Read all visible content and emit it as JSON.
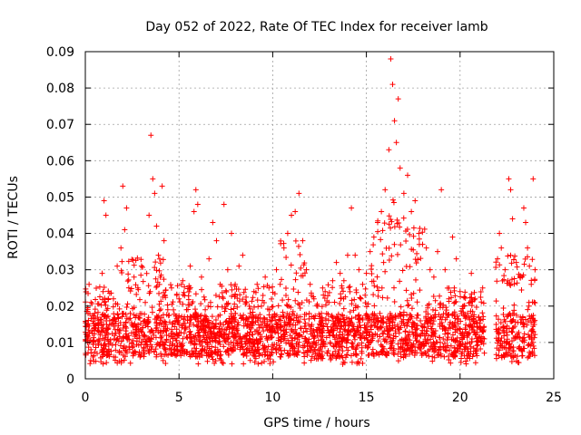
{
  "chart_data": {
    "type": "scatter",
    "title": "Day 052 of 2022, Rate Of TEC Index for receiver lamb",
    "xlabel": "GPS time / hours",
    "ylabel": "ROTI / TECUs",
    "xlim": [
      0,
      25
    ],
    "ylim": [
      0,
      0.09
    ],
    "xticks": [
      "0",
      "5",
      "10",
      "15",
      "20",
      "25"
    ],
    "yticks": [
      "0",
      "0.01",
      "0.02",
      "0.03",
      "0.04",
      "0.05",
      "0.06",
      "0.07",
      "0.08",
      "0.09"
    ],
    "grid": true,
    "marker": "+",
    "series_color": "#ff0000",
    "data_gap_hours": [
      21.3,
      21.9
    ],
    "series": [
      {
        "points": [
          [
            0.1,
            0.012
          ],
          [
            0.2,
            0.026
          ],
          [
            0.3,
            0.008
          ],
          [
            0.5,
            0.018
          ],
          [
            0.7,
            0.014
          ],
          [
            0.9,
            0.029
          ],
          [
            1.0,
            0.049
          ],
          [
            1.1,
            0.045
          ],
          [
            1.3,
            0.016
          ],
          [
            1.5,
            0.022
          ],
          [
            1.7,
            0.031
          ],
          [
            1.9,
            0.036
          ],
          [
            2.0,
            0.053
          ],
          [
            2.1,
            0.041
          ],
          [
            2.2,
            0.047
          ],
          [
            2.4,
            0.018
          ],
          [
            2.6,
            0.028
          ],
          [
            2.8,
            0.025
          ],
          [
            3.0,
            0.031
          ],
          [
            3.2,
            0.021
          ],
          [
            3.4,
            0.045
          ],
          [
            3.5,
            0.067
          ],
          [
            3.6,
            0.055
          ],
          [
            3.7,
            0.051
          ],
          [
            3.8,
            0.042
          ],
          [
            3.9,
            0.034
          ],
          [
            4.0,
            0.028
          ],
          [
            4.1,
            0.053
          ],
          [
            4.2,
            0.038
          ],
          [
            4.4,
            0.019
          ],
          [
            4.6,
            0.025
          ],
          [
            4.8,
            0.016
          ],
          [
            5.0,
            0.022
          ],
          [
            5.2,
            0.027
          ],
          [
            5.4,
            0.019
          ],
          [
            5.6,
            0.031
          ],
          [
            5.8,
            0.046
          ],
          [
            5.9,
            0.052
          ],
          [
            6.0,
            0.048
          ],
          [
            6.2,
            0.028
          ],
          [
            6.4,
            0.019
          ],
          [
            6.6,
            0.033
          ],
          [
            6.8,
            0.043
          ],
          [
            7.0,
            0.038
          ],
          [
            7.2,
            0.026
          ],
          [
            7.4,
            0.048
          ],
          [
            7.6,
            0.03
          ],
          [
            7.8,
            0.04
          ],
          [
            8.0,
            0.023
          ],
          [
            8.2,
            0.031
          ],
          [
            8.4,
            0.034
          ],
          [
            8.6,
            0.021
          ],
          [
            8.8,
            0.018
          ],
          [
            9.0,
            0.024
          ],
          [
            9.2,
            0.016
          ],
          [
            9.4,
            0.02
          ],
          [
            9.6,
            0.028
          ],
          [
            9.8,
            0.025
          ],
          [
            10.0,
            0.017
          ],
          [
            10.2,
            0.03
          ],
          [
            10.4,
            0.026
          ],
          [
            10.6,
            0.036
          ],
          [
            10.8,
            0.04
          ],
          [
            11.0,
            0.045
          ],
          [
            11.2,
            0.046
          ],
          [
            11.4,
            0.051
          ],
          [
            11.6,
            0.038
          ],
          [
            11.8,
            0.03
          ],
          [
            12.0,
            0.026
          ],
          [
            12.2,
            0.022
          ],
          [
            12.4,
            0.02
          ],
          [
            12.6,
            0.018
          ],
          [
            12.8,
            0.024
          ],
          [
            13.0,
            0.021
          ],
          [
            13.2,
            0.027
          ],
          [
            13.4,
            0.032
          ],
          [
            13.6,
            0.029
          ],
          [
            13.8,
            0.027
          ],
          [
            14.0,
            0.034
          ],
          [
            14.2,
            0.047
          ],
          [
            14.4,
            0.034
          ],
          [
            14.6,
            0.03
          ],
          [
            14.8,
            0.026
          ],
          [
            15.0,
            0.029
          ],
          [
            15.2,
            0.035
          ],
          [
            15.4,
            0.039
          ],
          [
            15.6,
            0.043
          ],
          [
            15.8,
            0.046
          ],
          [
            16.0,
            0.052
          ],
          [
            16.2,
            0.063
          ],
          [
            16.3,
            0.088
          ],
          [
            16.4,
            0.081
          ],
          [
            16.5,
            0.071
          ],
          [
            16.6,
            0.065
          ],
          [
            16.7,
            0.077
          ],
          [
            16.8,
            0.058
          ],
          [
            17.0,
            0.051
          ],
          [
            17.2,
            0.056
          ],
          [
            17.4,
            0.046
          ],
          [
            17.6,
            0.049
          ],
          [
            17.8,
            0.04
          ],
          [
            18.0,
            0.037
          ],
          [
            18.2,
            0.036
          ],
          [
            18.4,
            0.03
          ],
          [
            18.6,
            0.028
          ],
          [
            18.8,
            0.035
          ],
          [
            19.0,
            0.052
          ],
          [
            19.2,
            0.03
          ],
          [
            19.4,
            0.022
          ],
          [
            19.6,
            0.039
          ],
          [
            19.8,
            0.033
          ],
          [
            20.0,
            0.024
          ],
          [
            20.2,
            0.02
          ],
          [
            20.4,
            0.018
          ],
          [
            20.6,
            0.029
          ],
          [
            20.8,
            0.022
          ],
          [
            21.0,
            0.017
          ],
          [
            21.2,
            0.013
          ],
          [
            22.0,
            0.033
          ],
          [
            22.1,
            0.04
          ],
          [
            22.2,
            0.036
          ],
          [
            22.4,
            0.03
          ],
          [
            22.6,
            0.055
          ],
          [
            22.7,
            0.052
          ],
          [
            22.8,
            0.044
          ],
          [
            23.0,
            0.032
          ],
          [
            23.2,
            0.028
          ],
          [
            23.4,
            0.047
          ],
          [
            23.5,
            0.043
          ],
          [
            23.6,
            0.036
          ],
          [
            23.7,
            0.031
          ],
          [
            23.8,
            0.026
          ],
          [
            23.9,
            0.055
          ],
          [
            24.0,
            0.03
          ]
        ]
      }
    ]
  }
}
